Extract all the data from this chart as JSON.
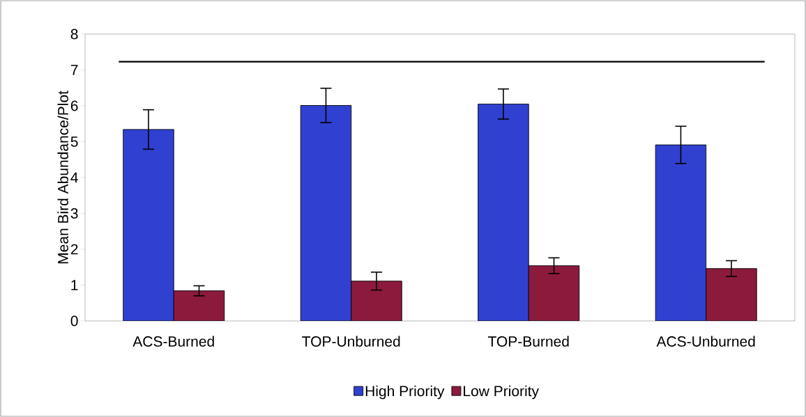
{
  "chart_data": {
    "type": "bar",
    "ylabel": "Mean Bird Abundance/Plot",
    "categories": [
      "ACS-Burned",
      "TOP-Unburned",
      "TOP-Burned",
      "ACS-Unburned"
    ],
    "series": [
      {
        "name": "High Priority",
        "color": "#3040d0",
        "values": [
          5.34,
          6.01,
          6.05,
          4.91
        ],
        "errors": [
          0.55,
          0.48,
          0.42,
          0.52
        ]
      },
      {
        "name": "Low Priority",
        "color": "#8c1a3c",
        "values": [
          0.84,
          1.11,
          1.54,
          1.46
        ],
        "errors": [
          0.14,
          0.25,
          0.22,
          0.22
        ]
      }
    ],
    "ylim": [
      0,
      8
    ],
    "yticks": [
      0,
      1,
      2,
      3,
      4,
      5,
      6,
      7,
      8
    ],
    "ref_lines": [
      {
        "axis": "y",
        "value": 7.23,
        "line_style": "solid"
      }
    ],
    "legend": "bottom",
    "grid": false
  }
}
